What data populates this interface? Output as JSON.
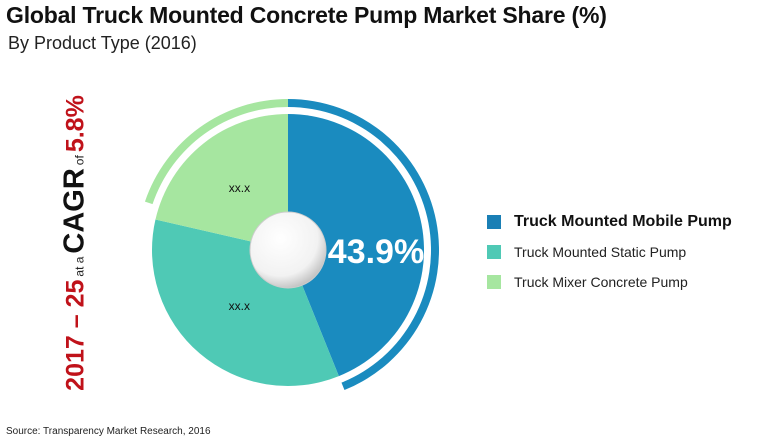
{
  "title": "Global Truck Mounted Concrete Pump Market Share (%)",
  "subtitle": "By Product Type (2016)",
  "cagr": {
    "period": "2017 – 25",
    "at_a": "at a",
    "label": "CAGR",
    "of": "of",
    "value": "5.8%"
  },
  "source": "Source: Transparency Market Research, 2016",
  "chart_data": {
    "type": "pie",
    "title": "Global Truck Mounted Concrete Pump Market Share (%)",
    "subtitle": "By Product Type (2016)",
    "categories": [
      "Truck Mounted Mobile Pump",
      "Truck Mounted Static Pump",
      "Truck Mixer Concrete Pump"
    ],
    "values": [
      43.9,
      34.7,
      21.4
    ],
    "data_labels": [
      "43.9%",
      "xx.x",
      "xx.x"
    ],
    "colors": [
      "#1a8bbf",
      "#4fc9b5",
      "#a6e6a0"
    ],
    "legend": "right",
    "donut_hole": true
  }
}
